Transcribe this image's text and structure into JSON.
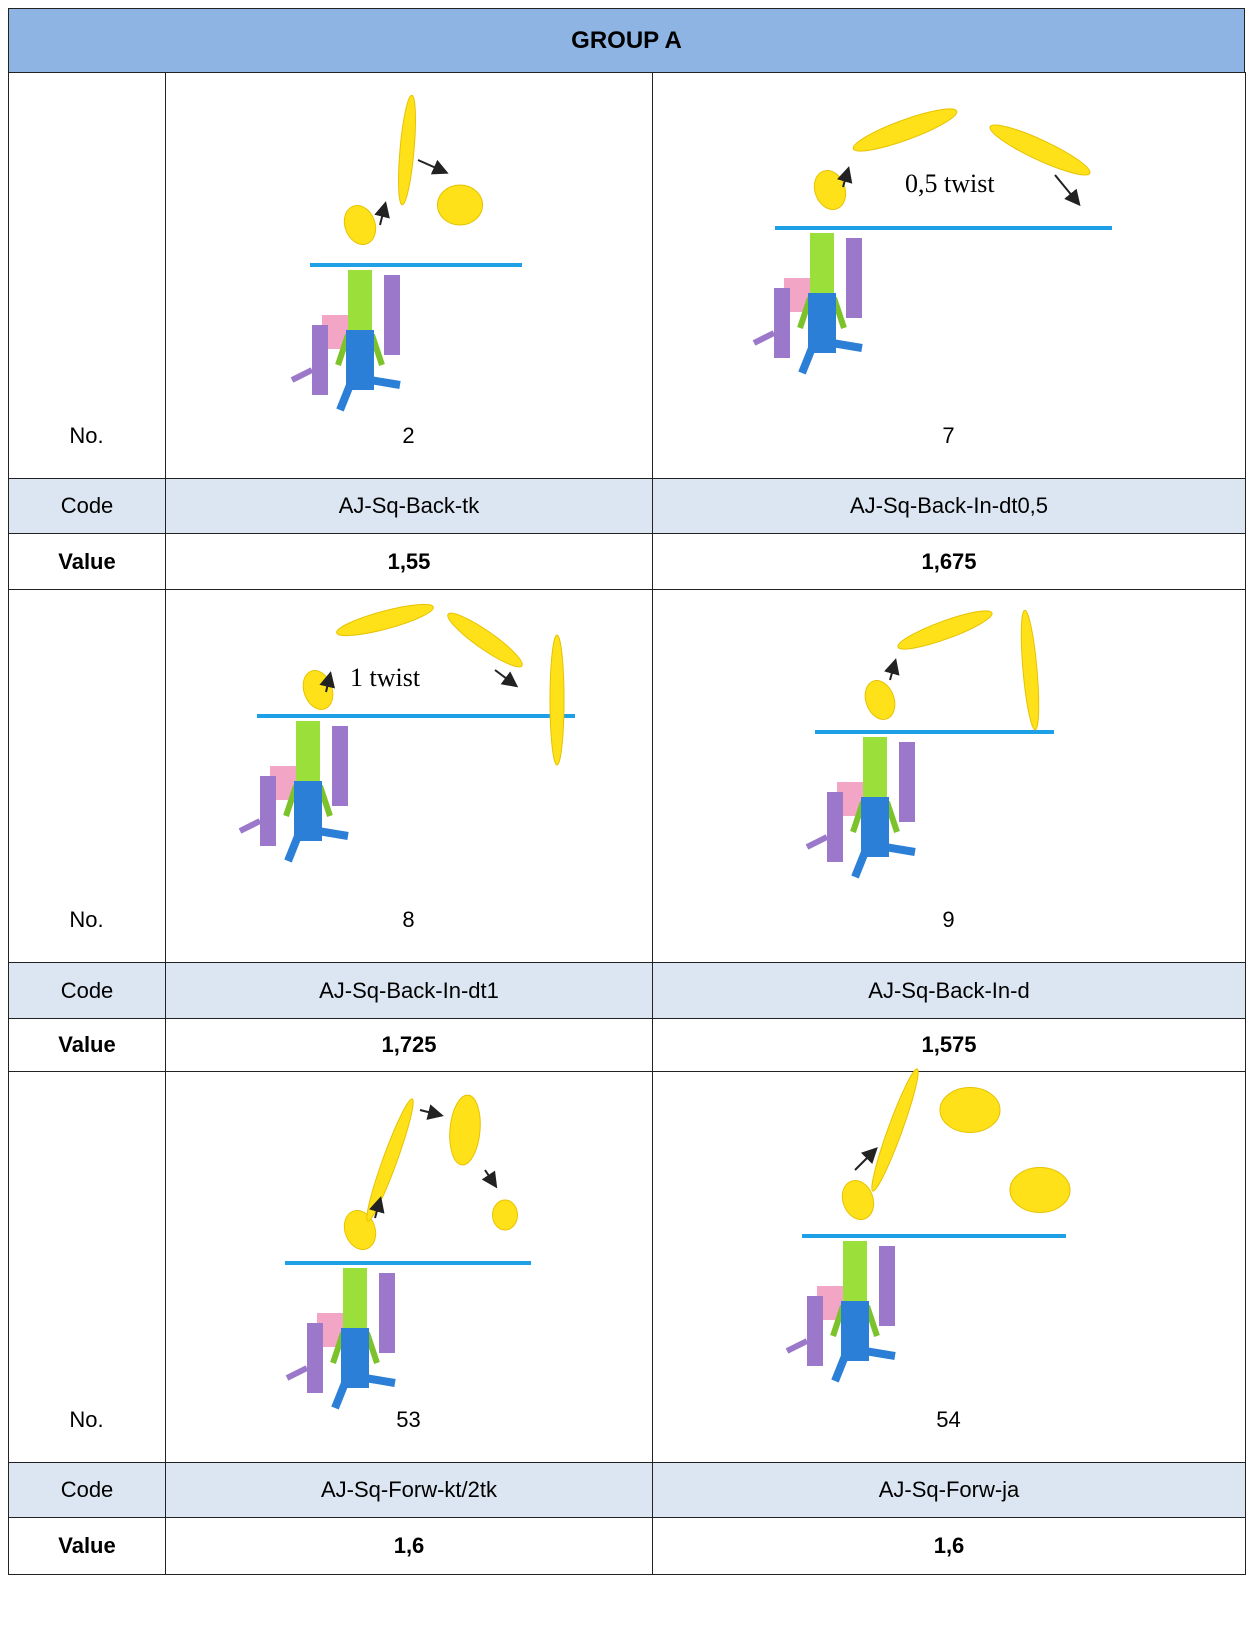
{
  "header": {
    "title": "GROUP A"
  },
  "row_labels": {
    "no": "No.",
    "code": "Code",
    "value": "Value"
  },
  "blocks": [
    {
      "cells": [
        {
          "no": "2",
          "code": "AJ-Sq-Back-tk",
          "value": "1,55"
        },
        {
          "no": "7",
          "code": "AJ-Sq-Back-In-dt0,5",
          "value": "1,675",
          "annotation": "0,5 twist"
        }
      ]
    },
    {
      "cells": [
        {
          "no": "8",
          "code": "AJ-Sq-Back-In-dt1",
          "value": "1,725",
          "annotation": "1 twist"
        },
        {
          "no": "9",
          "code": "AJ-Sq-Back-In-d",
          "value": "1,575"
        }
      ]
    },
    {
      "cells": [
        {
          "no": "53",
          "code": "AJ-Sq-Forw-kt/2tk",
          "value": "1,6"
        },
        {
          "no": "54",
          "code": "AJ-Sq-Forw-ja",
          "value": "1,6"
        }
      ]
    }
  ]
}
